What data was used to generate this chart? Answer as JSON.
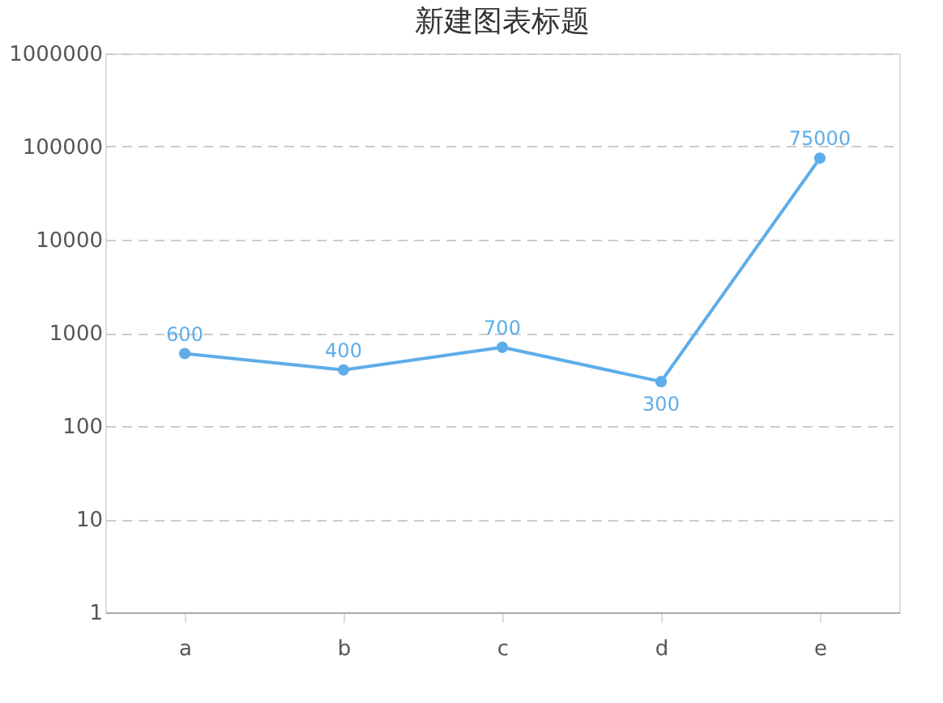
{
  "chart_data": {
    "type": "line",
    "title": "新建图表标题",
    "categories": [
      "a",
      "b",
      "c",
      "d",
      "e"
    ],
    "series": [
      {
        "color": "#5dade9",
        "values": [
          600,
          400,
          700,
          300,
          75000
        ]
      }
    ],
    "log": true,
    "ylim": [
      1,
      1000000
    ],
    "yticks": [
      1,
      10,
      100,
      1000,
      10000,
      100000,
      1000000
    ],
    "grid": "y",
    "marker": "circle",
    "line_style": "solid",
    "data_labels": true,
    "legend": false
  }
}
